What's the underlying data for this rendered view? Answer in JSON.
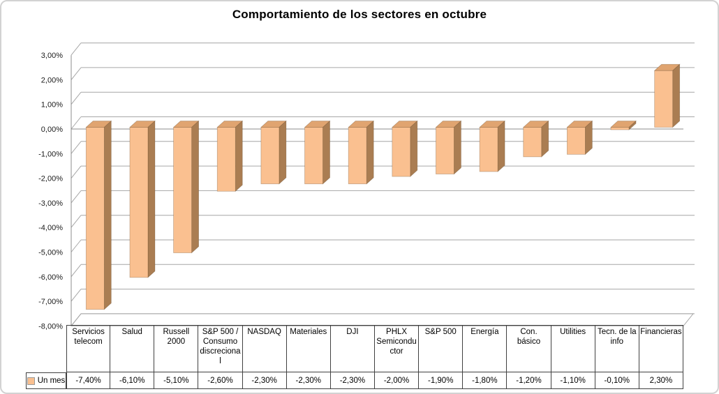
{
  "chart_data": {
    "type": "bar",
    "style": "3d-column",
    "title": "Comportamiento de los sectores en octubre",
    "xlabel": "",
    "ylabel": "",
    "ylim": [
      -8,
      3
    ],
    "ytick_step": 1,
    "grid": true,
    "legend_position": "bottom-left-table",
    "legend": {
      "label": "Un mes"
    },
    "categories": [
      "Servicios telecom",
      "Salud",
      "Russell 2000",
      "S&P 500 / Consumo discrecional",
      "NASDAQ",
      "Materiales",
      "DJI",
      "PHLX Semiconductor",
      "S&P 500",
      "Energía",
      "Con. básico",
      "Utilities",
      "Tecn. de la info",
      "Financieras"
    ],
    "series": [
      {
        "name": "Un mes",
        "values": [
          -7.4,
          -6.1,
          -5.1,
          -2.6,
          -2.3,
          -2.3,
          -2.3,
          -2.0,
          -1.9,
          -1.8,
          -1.2,
          -1.1,
          -0.1,
          2.3
        ]
      }
    ],
    "value_labels": [
      "-7,40%",
      "-6,10%",
      "-5,10%",
      "-2,60%",
      "-2,30%",
      "-2,30%",
      "-2,30%",
      "-2,00%",
      "-1,90%",
      "-1,80%",
      "-1,20%",
      "-1,10%",
      "-0,10%",
      "2,30%"
    ],
    "ytick_labels": [
      "3,00%",
      "2,00%",
      "1,00%",
      "0,00%",
      "-1,00%",
      "-2,00%",
      "-3,00%",
      "-4,00%",
      "-5,00%",
      "-6,00%",
      "-7,00%",
      "-8,00%"
    ],
    "colors": {
      "bar_front": "#FAC090",
      "bar_side": "#AA7D52",
      "bar_top": "#E0A470",
      "gridline": "#A6A6A6",
      "axis_line": "#8C8C8C",
      "tick_text": "#1a1a1a",
      "table_border": "#404040",
      "frame_border": "#D2D2D2",
      "title_color": "#000000"
    }
  }
}
